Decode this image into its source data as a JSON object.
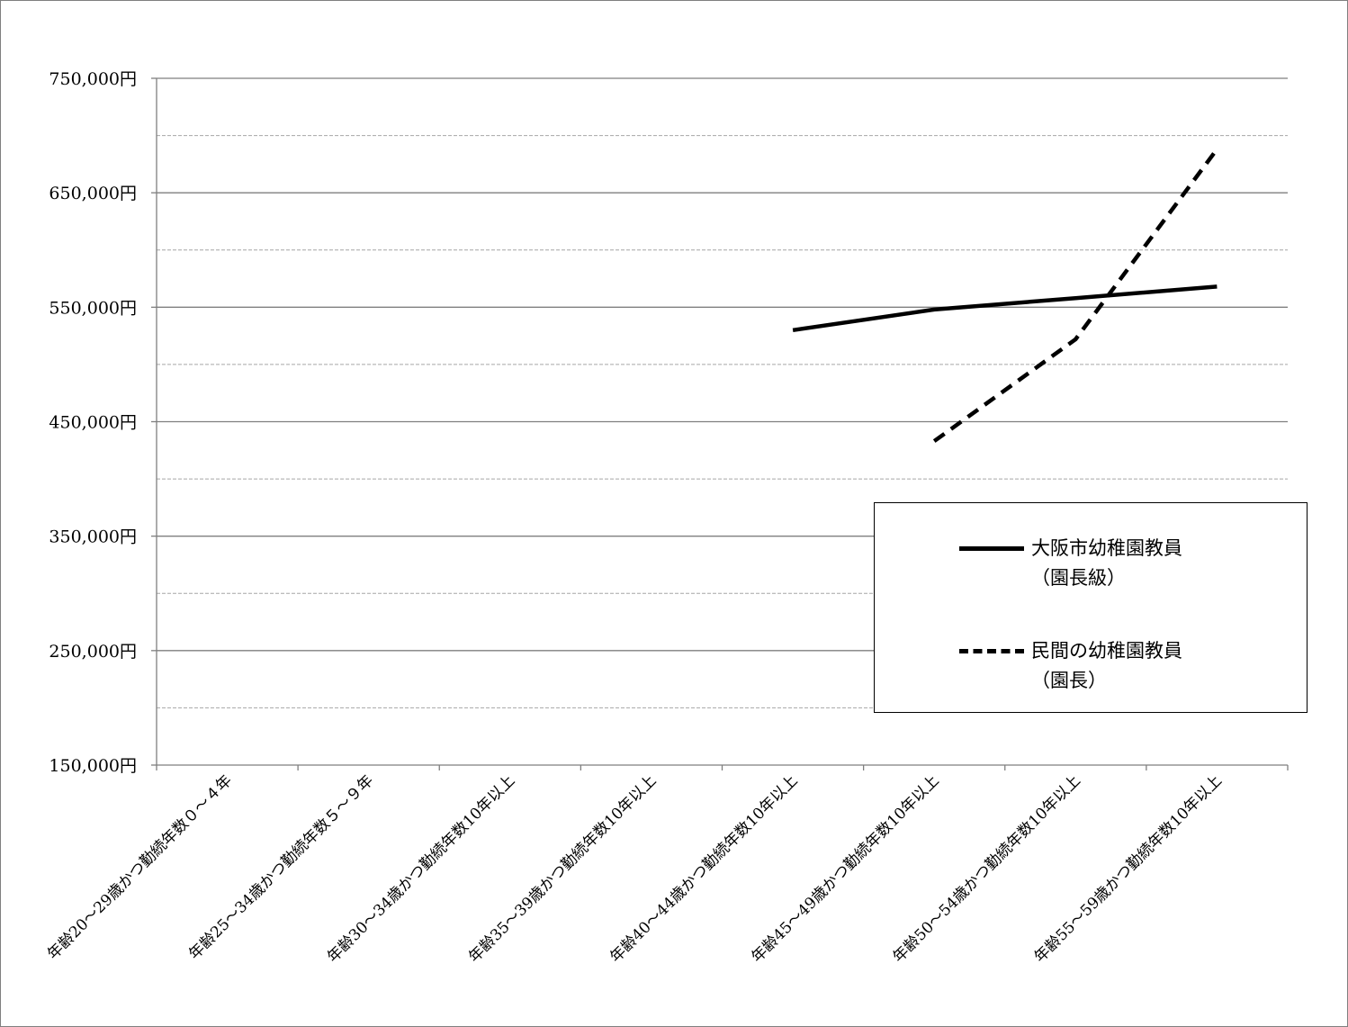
{
  "chart_data": {
    "type": "line",
    "title": "",
    "xlabel": "",
    "ylabel": "",
    "ylim": [
      150000,
      750000
    ],
    "y_ticks": [
      150000,
      250000,
      350000,
      450000,
      550000,
      650000,
      750000
    ],
    "y_tick_labels": [
      "150,000円",
      "250,000円",
      "350,000円",
      "450,000円",
      "550,000円",
      "650,000円",
      "750,000円"
    ],
    "minor_gridlines": [
      200000,
      300000,
      400000,
      500000,
      600000,
      700000
    ],
    "grid": true,
    "legend_position": "right",
    "categories": [
      "年齢20～29歳かつ勤続年数０～４年",
      "年齢25～34歳かつ勤続年数５～９年",
      "年齢30～34歳かつ勤続年数10年以上",
      "年齢35～39歳かつ勤続年数10年以上",
      "年齢40～44歳かつ勤続年数10年以上",
      "年齢45～49歳かつ勤続年数10年以上",
      "年齢50～54歳かつ勤続年数10年以上",
      "年齢55～59歳かつ勤続年数10年以上"
    ],
    "series": [
      {
        "name": "大阪市幼稚園教員\n（園長級）",
        "style": "solid",
        "color": "#000000",
        "values": [
          null,
          null,
          null,
          null,
          530000,
          548000,
          558000,
          568000
        ]
      },
      {
        "name": "民間の幼稚園教員\n（園長）",
        "style": "dashed",
        "color": "#000000",
        "values": [
          null,
          null,
          null,
          null,
          null,
          433000,
          522000,
          688000
        ]
      }
    ]
  }
}
